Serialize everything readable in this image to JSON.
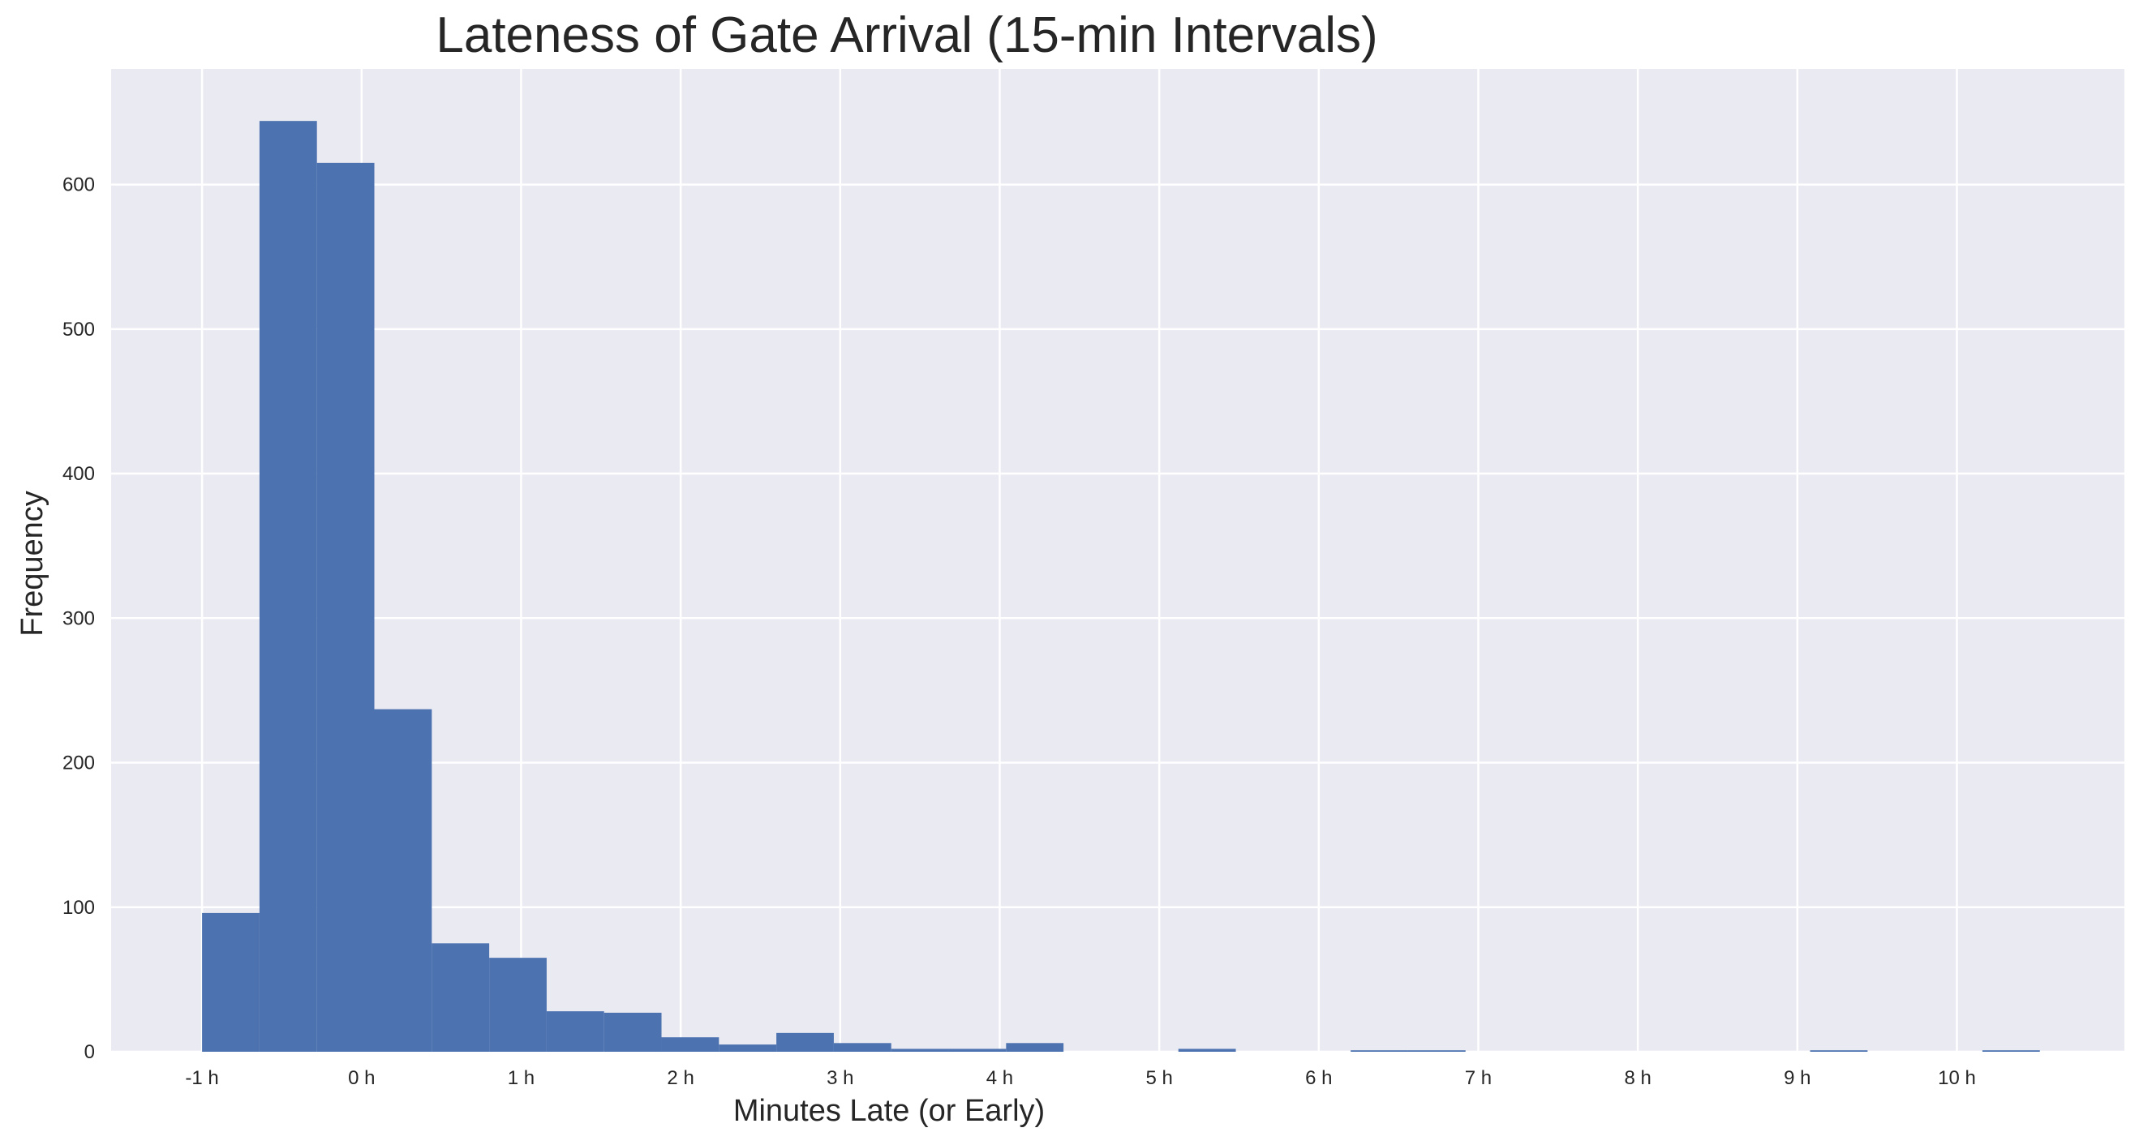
{
  "chart_data": {
    "type": "bar",
    "title": "Lateness of Gate Arrival (15-min Intervals)",
    "xlabel": "Minutes Late (or Early)",
    "ylabel": "Frequency",
    "ylim": [
      0,
      680
    ],
    "xlim": [
      -1.57,
      11.05
    ],
    "grid": true,
    "background": "#eaeaf2",
    "bar_color": "#4c72b0",
    "x_ticks": [
      {
        "value": -1,
        "label": "-1 h"
      },
      {
        "value": 0,
        "label": "0 h"
      },
      {
        "value": 1,
        "label": "1 h"
      },
      {
        "value": 2,
        "label": "2 h"
      },
      {
        "value": 3,
        "label": "3 h"
      },
      {
        "value": 4,
        "label": "4 h"
      },
      {
        "value": 5,
        "label": "5 h"
      },
      {
        "value": 6,
        "label": "6 h"
      },
      {
        "value": 7,
        "label": "7 h"
      },
      {
        "value": 8,
        "label": "8 h"
      },
      {
        "value": 9,
        "label": "9 h"
      },
      {
        "value": 10,
        "label": "10 h"
      }
    ],
    "y_ticks": [
      {
        "value": 0,
        "label": "0"
      },
      {
        "value": 100,
        "label": "100"
      },
      {
        "value": 200,
        "label": "200"
      },
      {
        "value": 300,
        "label": "300"
      },
      {
        "value": 400,
        "label": "400"
      },
      {
        "value": 500,
        "label": "500"
      },
      {
        "value": 600,
        "label": "600"
      }
    ],
    "bins": [
      {
        "x0": -1.0,
        "x1": -0.64,
        "count": 96
      },
      {
        "x0": -0.64,
        "x1": -0.28,
        "count": 644
      },
      {
        "x0": -0.28,
        "x1": 0.08,
        "count": 615
      },
      {
        "x0": 0.08,
        "x1": 0.44,
        "count": 237
      },
      {
        "x0": 0.44,
        "x1": 0.8,
        "count": 75
      },
      {
        "x0": 0.8,
        "x1": 1.16,
        "count": 65
      },
      {
        "x0": 1.16,
        "x1": 1.52,
        "count": 28
      },
      {
        "x0": 1.52,
        "x1": 1.88,
        "count": 27
      },
      {
        "x0": 1.88,
        "x1": 2.24,
        "count": 10
      },
      {
        "x0": 2.24,
        "x1": 2.6,
        "count": 5
      },
      {
        "x0": 2.6,
        "x1": 2.96,
        "count": 13
      },
      {
        "x0": 2.96,
        "x1": 3.32,
        "count": 6
      },
      {
        "x0": 3.32,
        "x1": 3.68,
        "count": 2
      },
      {
        "x0": 3.68,
        "x1": 4.04,
        "count": 2
      },
      {
        "x0": 4.04,
        "x1": 4.4,
        "count": 6
      },
      {
        "x0": 4.4,
        "x1": 4.76,
        "count": 0
      },
      {
        "x0": 4.76,
        "x1": 5.12,
        "count": 0
      },
      {
        "x0": 5.12,
        "x1": 5.48,
        "count": 2
      },
      {
        "x0": 5.48,
        "x1": 5.84,
        "count": 0
      },
      {
        "x0": 5.84,
        "x1": 6.2,
        "count": 0
      },
      {
        "x0": 6.2,
        "x1": 6.56,
        "count": 1
      },
      {
        "x0": 6.56,
        "x1": 6.92,
        "count": 1
      },
      {
        "x0": 6.92,
        "x1": 7.28,
        "count": 0
      },
      {
        "x0": 7.28,
        "x1": 7.64,
        "count": 0
      },
      {
        "x0": 7.64,
        "x1": 8.0,
        "count": 0
      },
      {
        "x0": 8.0,
        "x1": 8.36,
        "count": 0
      },
      {
        "x0": 8.36,
        "x1": 8.72,
        "count": 0
      },
      {
        "x0": 8.72,
        "x1": 9.08,
        "count": 0
      },
      {
        "x0": 9.08,
        "x1": 9.44,
        "count": 1
      },
      {
        "x0": 9.44,
        "x1": 9.8,
        "count": 0
      },
      {
        "x0": 9.8,
        "x1": 10.16,
        "count": 0
      },
      {
        "x0": 10.16,
        "x1": 10.52,
        "count": 1
      }
    ]
  }
}
